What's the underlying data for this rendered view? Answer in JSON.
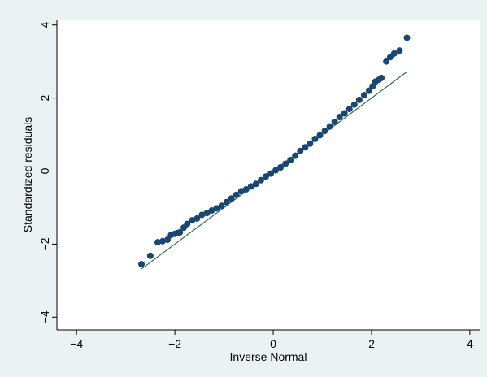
{
  "chart_data": {
    "type": "scatter",
    "title": "",
    "xlabel": "Inverse Normal",
    "ylabel": "Standardized residuals",
    "xlim": [
      -4.4,
      4.2
    ],
    "ylim": [
      -4.35,
      4.15
    ],
    "x_ticks": [
      "−4",
      "−2",
      "0",
      "2",
      "4"
    ],
    "x_tick_values": [
      -4,
      -2,
      0,
      2,
      4
    ],
    "y_ticks": [
      "−4",
      "−2",
      "0",
      "2",
      "4"
    ],
    "y_tick_values": [
      -4,
      -2,
      0,
      2,
      4
    ],
    "grid": false,
    "legend": "none",
    "colors": {
      "background": "#eaf2f3",
      "plot_area": "#ffffff",
      "points": "#1a476f",
      "reference_line": "#2d6e5a"
    },
    "reference_line": {
      "x": [
        -2.68,
        2.72
      ],
      "y": [
        -2.68,
        2.72
      ]
    },
    "points": {
      "x": [
        -2.68,
        -2.5,
        -2.35,
        -2.25,
        -2.15,
        -2.08,
        -2.0,
        -1.95,
        -1.9,
        -1.82,
        -1.75,
        -1.65,
        -1.55,
        -1.45,
        -1.35,
        -1.25,
        -1.15,
        -1.05,
        -0.95,
        -0.85,
        -0.75,
        -0.65,
        -0.55,
        -0.45,
        -0.35,
        -0.25,
        -0.15,
        -0.05,
        0.05,
        0.15,
        0.25,
        0.35,
        0.45,
        0.55,
        0.65,
        0.75,
        0.85,
        0.95,
        1.05,
        1.15,
        1.25,
        1.35,
        1.45,
        1.55,
        1.65,
        1.75,
        1.85,
        1.95,
        2.02,
        2.08,
        2.15,
        2.2,
        2.3,
        2.38,
        2.46,
        2.57,
        2.72
      ],
      "y": [
        -2.55,
        -2.32,
        -1.95,
        -1.92,
        -1.88,
        -1.75,
        -1.72,
        -1.7,
        -1.68,
        -1.55,
        -1.45,
        -1.35,
        -1.3,
        -1.2,
        -1.15,
        -1.08,
        -1.02,
        -0.95,
        -0.85,
        -0.75,
        -0.65,
        -0.55,
        -0.5,
        -0.42,
        -0.35,
        -0.25,
        -0.15,
        -0.07,
        0.02,
        0.1,
        0.2,
        0.3,
        0.42,
        0.55,
        0.65,
        0.75,
        0.88,
        0.98,
        1.1,
        1.22,
        1.35,
        1.48,
        1.58,
        1.7,
        1.82,
        1.95,
        2.08,
        2.2,
        2.32,
        2.45,
        2.5,
        2.55,
        3.0,
        3.12,
        3.22,
        3.3,
        3.65
      ]
    }
  }
}
